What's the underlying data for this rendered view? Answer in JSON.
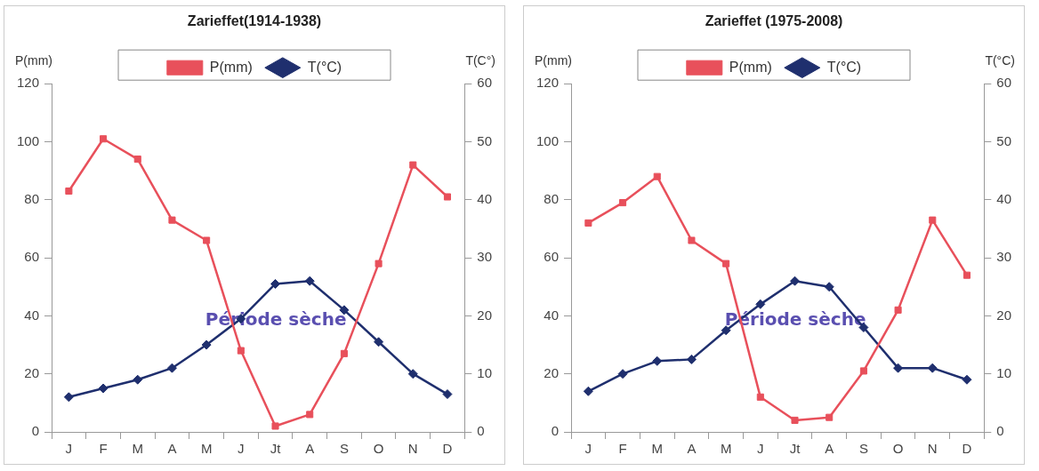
{
  "chart_data": [
    {
      "type": "line",
      "title": "Zarieffet(1914-1938)",
      "ylabel": "P(mm)",
      "y2label": "T(C°)",
      "categories": [
        "J",
        "F",
        "M",
        "A",
        "M",
        "J",
        "Jt",
        "A",
        "S",
        "O",
        "N",
        "D"
      ],
      "series": [
        {
          "name": "P(mm)",
          "color": "#e8505b",
          "marker": "square",
          "values": [
            83,
            101,
            94,
            73,
            66,
            28,
            2,
            6,
            27,
            58,
            92,
            81
          ]
        },
        {
          "name": "T(°C)",
          "color": "#1f2f6e",
          "marker": "diamond",
          "axis": "y2",
          "values": [
            6,
            7.5,
            9,
            11,
            15,
            19.5,
            25.5,
            26,
            21,
            15.5,
            10,
            6.5
          ]
        }
      ],
      "ylim": [
        0,
        120
      ],
      "yticks": [
        0,
        20,
        40,
        60,
        80,
        100,
        120
      ],
      "y2lim": [
        0,
        60
      ],
      "y2ticks": [
        0,
        10,
        20,
        30,
        40,
        50,
        60
      ],
      "grid": false,
      "legend": "top",
      "annotations": [
        "Période sèche"
      ]
    },
    {
      "type": "line",
      "title": "Zarieffet (1975-2008)",
      "ylabel": "P(mm)",
      "y2label": "T(°C)",
      "categories": [
        "J",
        "F",
        "M",
        "A",
        "M",
        "J",
        "Jt",
        "A",
        "S",
        "O",
        "N",
        "D"
      ],
      "series": [
        {
          "name": "P(mm)",
          "color": "#e8505b",
          "marker": "square",
          "values": [
            72,
            79,
            88,
            66,
            58,
            12,
            4,
            5,
            21,
            42,
            73,
            54
          ]
        },
        {
          "name": "T(°C)",
          "color": "#1f2f6e",
          "marker": "diamond",
          "axis": "y2",
          "values": [
            7,
            10,
            12.2,
            12.5,
            17.5,
            22,
            26,
            25,
            18,
            11,
            11,
            9
          ]
        }
      ],
      "ylim": [
        0,
        120
      ],
      "yticks": [
        0,
        20,
        40,
        60,
        80,
        100,
        120
      ],
      "y2lim": [
        0,
        60
      ],
      "y2ticks": [
        0,
        10,
        20,
        30,
        40,
        50,
        60
      ],
      "grid": false,
      "legend": "top",
      "annotations": [
        "Période sèche"
      ]
    }
  ]
}
